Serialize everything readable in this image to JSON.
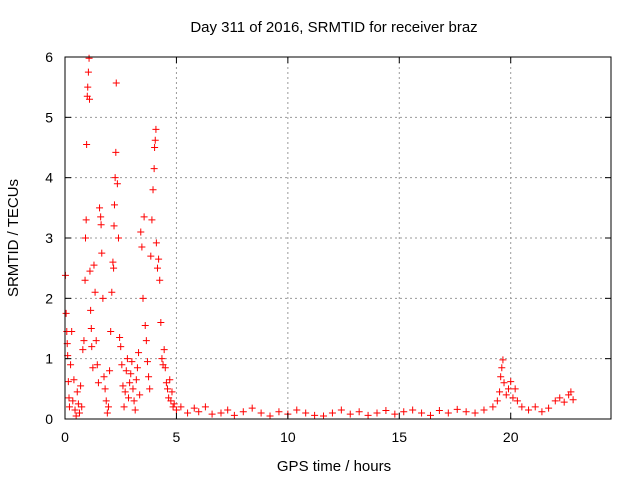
{
  "chart_data": {
    "type": "scatter",
    "title": "Day 311 of 2016, SRMTID for receiver braz",
    "xlabel": "GPS time / hours",
    "ylabel": "SRMTID / TECUs",
    "xlim": [
      0,
      24.5
    ],
    "ylim": [
      0,
      6
    ],
    "xticks": [
      0,
      5,
      10,
      15,
      20
    ],
    "yticks": [
      0,
      1,
      2,
      3,
      4,
      5,
      6
    ],
    "grid": true,
    "marker": "+",
    "color": "#ff0000",
    "series": [
      {
        "name": "SRMTID",
        "points": [
          [
            0.02,
            2.38
          ],
          [
            0.05,
            1.75
          ],
          [
            0.08,
            1.45
          ],
          [
            0.1,
            1.25
          ],
          [
            0.12,
            1.05
          ],
          [
            0.15,
            0.62
          ],
          [
            0.18,
            0.35
          ],
          [
            0.2,
            0.2
          ],
          [
            0.25,
            0.9
          ],
          [
            0.3,
            1.45
          ],
          [
            0.35,
            0.3
          ],
          [
            0.4,
            0.65
          ],
          [
            0.45,
            0.15
          ],
          [
            0.5,
            0.05
          ],
          [
            0.55,
            0.45
          ],
          [
            0.6,
            0.25
          ],
          [
            0.65,
            0.1
          ],
          [
            0.7,
            0.55
          ],
          [
            0.75,
            0.2
          ],
          [
            0.8,
            1.15
          ],
          [
            0.85,
            1.3
          ],
          [
            0.9,
            2.3
          ],
          [
            0.92,
            3.0
          ],
          [
            0.95,
            3.3
          ],
          [
            0.97,
            4.55
          ],
          [
            1.0,
            5.35
          ],
          [
            1.02,
            5.5
          ],
          [
            1.05,
            5.75
          ],
          [
            1.08,
            5.98
          ],
          [
            1.1,
            5.3
          ],
          [
            1.12,
            2.45
          ],
          [
            1.15,
            1.8
          ],
          [
            1.18,
            1.5
          ],
          [
            1.2,
            1.2
          ],
          [
            1.25,
            0.85
          ],
          [
            1.3,
            2.55
          ],
          [
            1.35,
            2.1
          ],
          [
            1.4,
            1.3
          ],
          [
            1.45,
            0.9
          ],
          [
            1.5,
            0.6
          ],
          [
            1.55,
            3.5
          ],
          [
            1.6,
            3.35
          ],
          [
            1.62,
            3.22
          ],
          [
            1.65,
            2.75
          ],
          [
            1.7,
            2.0
          ],
          [
            1.75,
            0.7
          ],
          [
            1.8,
            0.5
          ],
          [
            1.85,
            0.3
          ],
          [
            1.9,
            0.1
          ],
          [
            1.95,
            0.2
          ],
          [
            2.0,
            0.8
          ],
          [
            2.05,
            1.45
          ],
          [
            2.1,
            2.1
          ],
          [
            2.15,
            2.6
          ],
          [
            2.18,
            2.5
          ],
          [
            2.2,
            3.2
          ],
          [
            2.22,
            3.55
          ],
          [
            2.25,
            4.0
          ],
          [
            2.28,
            4.42
          ],
          [
            2.3,
            5.57
          ],
          [
            2.35,
            3.9
          ],
          [
            2.4,
            3.0
          ],
          [
            2.45,
            1.35
          ],
          [
            2.5,
            1.2
          ],
          [
            2.55,
            0.9
          ],
          [
            2.6,
            0.55
          ],
          [
            2.65,
            0.2
          ],
          [
            2.7,
            0.45
          ],
          [
            2.75,
            0.8
          ],
          [
            2.8,
            1.0
          ],
          [
            2.85,
            0.35
          ],
          [
            2.9,
            0.6
          ],
          [
            2.95,
            0.75
          ],
          [
            3.0,
            0.95
          ],
          [
            3.05,
            0.5
          ],
          [
            3.1,
            0.3
          ],
          [
            3.15,
            0.15
          ],
          [
            3.2,
            0.65
          ],
          [
            3.25,
            0.85
          ],
          [
            3.3,
            1.1
          ],
          [
            3.35,
            0.4
          ],
          [
            3.4,
            3.1
          ],
          [
            3.45,
            2.85
          ],
          [
            3.5,
            2.0
          ],
          [
            3.55,
            3.35
          ],
          [
            3.6,
            1.55
          ],
          [
            3.65,
            1.3
          ],
          [
            3.7,
            0.95
          ],
          [
            3.75,
            0.7
          ],
          [
            3.8,
            0.5
          ],
          [
            3.85,
            2.7
          ],
          [
            3.9,
            3.3
          ],
          [
            3.95,
            3.8
          ],
          [
            4.0,
            4.15
          ],
          [
            4.02,
            4.5
          ],
          [
            4.05,
            4.62
          ],
          [
            4.08,
            4.8
          ],
          [
            4.1,
            2.92
          ],
          [
            4.15,
            2.5
          ],
          [
            4.2,
            2.65
          ],
          [
            4.25,
            2.3
          ],
          [
            4.3,
            1.6
          ],
          [
            4.35,
            1.0
          ],
          [
            4.4,
            0.9
          ],
          [
            4.45,
            1.15
          ],
          [
            4.5,
            0.85
          ],
          [
            4.55,
            0.6
          ],
          [
            4.6,
            0.5
          ],
          [
            4.65,
            0.35
          ],
          [
            4.7,
            0.65
          ],
          [
            4.75,
            0.3
          ],
          [
            4.8,
            0.45
          ],
          [
            4.85,
            0.2
          ],
          [
            4.9,
            0.25
          ],
          [
            5.0,
            0.15
          ],
          [
            5.2,
            0.2
          ],
          [
            5.5,
            0.1
          ],
          [
            5.8,
            0.18
          ],
          [
            6.0,
            0.12
          ],
          [
            6.3,
            0.2
          ],
          [
            6.6,
            0.08
          ],
          [
            7.0,
            0.1
          ],
          [
            7.3,
            0.15
          ],
          [
            7.6,
            0.06
          ],
          [
            8.0,
            0.12
          ],
          [
            8.4,
            0.18
          ],
          [
            8.8,
            0.1
          ],
          [
            9.2,
            0.05
          ],
          [
            9.6,
            0.12
          ],
          [
            10.0,
            0.08
          ],
          [
            10.4,
            0.15
          ],
          [
            10.8,
            0.1
          ],
          [
            11.2,
            0.06
          ],
          [
            11.6,
            0.05
          ],
          [
            12.0,
            0.1
          ],
          [
            12.4,
            0.15
          ],
          [
            12.8,
            0.08
          ],
          [
            13.2,
            0.12
          ],
          [
            13.6,
            0.06
          ],
          [
            14.0,
            0.1
          ],
          [
            14.4,
            0.14
          ],
          [
            14.8,
            0.08
          ],
          [
            15.2,
            0.12
          ],
          [
            15.6,
            0.15
          ],
          [
            16.0,
            0.1
          ],
          [
            16.4,
            0.06
          ],
          [
            16.8,
            0.14
          ],
          [
            17.2,
            0.1
          ],
          [
            17.6,
            0.16
          ],
          [
            18.0,
            0.12
          ],
          [
            18.4,
            0.1
          ],
          [
            18.8,
            0.15
          ],
          [
            19.2,
            0.2
          ],
          [
            19.4,
            0.3
          ],
          [
            19.5,
            0.45
          ],
          [
            19.55,
            0.7
          ],
          [
            19.6,
            0.85
          ],
          [
            19.65,
            0.98
          ],
          [
            19.7,
            0.6
          ],
          [
            19.8,
            0.4
          ],
          [
            19.9,
            0.5
          ],
          [
            20.0,
            0.62
          ],
          [
            20.1,
            0.35
          ],
          [
            20.2,
            0.5
          ],
          [
            20.3,
            0.3
          ],
          [
            20.5,
            0.2
          ],
          [
            20.8,
            0.15
          ],
          [
            21.1,
            0.2
          ],
          [
            21.4,
            0.12
          ],
          [
            21.7,
            0.18
          ],
          [
            22.0,
            0.3
          ],
          [
            22.2,
            0.35
          ],
          [
            22.4,
            0.28
          ],
          [
            22.6,
            0.4
          ],
          [
            22.7,
            0.45
          ],
          [
            22.8,
            0.32
          ]
        ]
      }
    ]
  }
}
